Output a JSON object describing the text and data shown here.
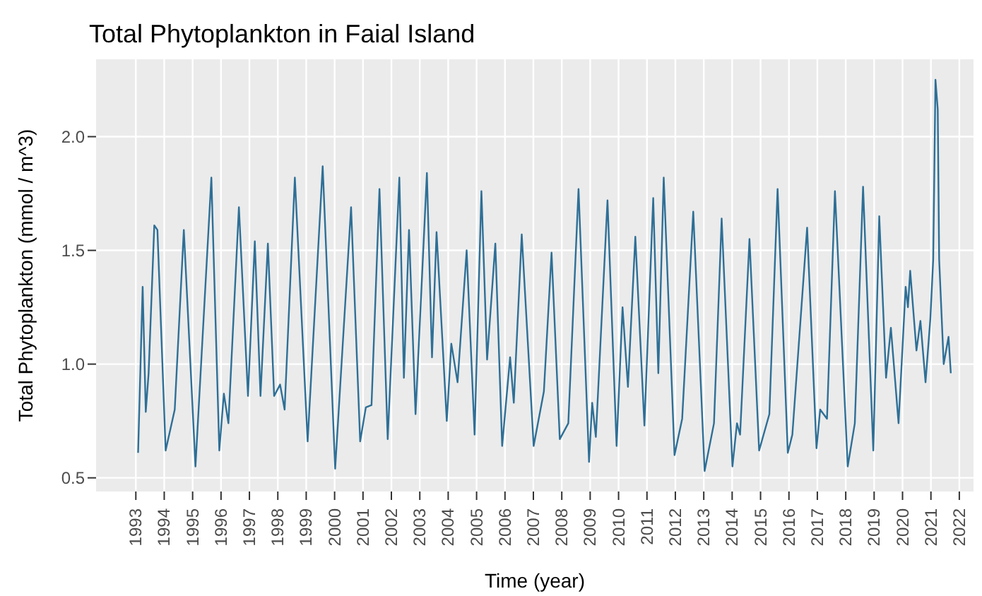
{
  "chart_data": {
    "type": "line",
    "title": "Total Phytoplankton in Faial Island",
    "xlabel": "Time (year)",
    "ylabel": "Total Phytoplankton (mmol / m^3)",
    "x": [
      1993.08,
      1993.24,
      1993.35,
      1993.45,
      1993.65,
      1993.76,
      1994.05,
      1994.37,
      1994.69,
      1995.1,
      1995.66,
      1995.94,
      1996.1,
      1996.26,
      1996.63,
      1996.95,
      1997.19,
      1997.39,
      1997.65,
      1997.87,
      1998.08,
      1998.24,
      1998.6,
      1999.05,
      1999.58,
      2000.02,
      2000.58,
      2000.9,
      2001.1,
      2001.3,
      2001.58,
      2001.87,
      2002.28,
      2002.44,
      2002.62,
      2002.85,
      2003.25,
      2003.43,
      2003.59,
      2003.95,
      2004.11,
      2004.33,
      2004.65,
      2004.93,
      2005.17,
      2005.37,
      2005.66,
      2005.9,
      2006.18,
      2006.31,
      2006.59,
      2007.01,
      2007.37,
      2007.64,
      2007.93,
      2008.23,
      2008.59,
      2008.96,
      2009.07,
      2009.2,
      2009.61,
      2009.93,
      2010.14,
      2010.33,
      2010.59,
      2010.91,
      2011.22,
      2011.4,
      2011.59,
      2011.97,
      2012.24,
      2012.63,
      2013.03,
      2013.36,
      2013.63,
      2014.01,
      2014.17,
      2014.28,
      2014.61,
      2014.95,
      2015.31,
      2015.6,
      2015.96,
      2016.12,
      2016.64,
      2016.97,
      2017.1,
      2017.34,
      2017.62,
      2018.07,
      2018.32,
      2018.61,
      2018.97,
      2019.18,
      2019.42,
      2019.59,
      2019.86,
      2020.11,
      2020.19,
      2020.27,
      2020.49,
      2020.63,
      2020.81,
      2020.98,
      2021.08,
      2021.16,
      2021.24,
      2021.29,
      2021.45,
      2021.62,
      2021.7
    ],
    "series": [
      {
        "color": "#2e6f96",
        "values": [
          0.61,
          1.34,
          0.79,
          0.96,
          1.61,
          1.59,
          0.62,
          0.8,
          1.59,
          0.55,
          1.82,
          0.62,
          0.87,
          0.74,
          1.69,
          0.86,
          1.54,
          0.86,
          1.53,
          0.86,
          0.91,
          0.8,
          1.82,
          0.66,
          1.87,
          0.54,
          1.69,
          0.66,
          0.81,
          0.82,
          1.77,
          0.67,
          1.82,
          0.94,
          1.59,
          0.78,
          1.84,
          1.03,
          1.58,
          0.75,
          1.09,
          0.92,
          1.5,
          0.69,
          1.76,
          1.02,
          1.53,
          0.64,
          1.03,
          0.83,
          1.57,
          0.64,
          0.88,
          1.49,
          0.67,
          0.74,
          1.77,
          0.57,
          0.83,
          0.68,
          1.72,
          0.64,
          1.25,
          0.9,
          1.56,
          0.73,
          1.73,
          0.96,
          1.82,
          0.6,
          0.76,
          1.67,
          0.53,
          0.74,
          1.64,
          0.55,
          0.74,
          0.69,
          1.55,
          0.62,
          0.78,
          1.77,
          0.61,
          0.69,
          1.6,
          0.63,
          0.8,
          0.76,
          1.76,
          0.55,
          0.74,
          1.78,
          0.62,
          1.65,
          0.94,
          1.16,
          0.74,
          1.34,
          1.25,
          1.41,
          1.06,
          1.19,
          0.92,
          1.2,
          1.46,
          2.25,
          2.12,
          1.46,
          1.0,
          1.12,
          0.96
        ]
      }
    ],
    "xlim": [
      1991.6,
      2022.5
    ],
    "xticks": [
      1993,
      1994,
      1995,
      1996,
      1997,
      1998,
      1999,
      2000,
      2001,
      2002,
      2003,
      2004,
      2005,
      2006,
      2007,
      2008,
      2009,
      2010,
      2011,
      2012,
      2013,
      2014,
      2015,
      2016,
      2017,
      2018,
      2019,
      2020,
      2021,
      2022
    ],
    "ylim": [
      0.44,
      2.34
    ],
    "yticks": [
      {
        "value": 0.5,
        "label": "0.5"
      },
      {
        "value": 1.0,
        "label": "1.0"
      },
      {
        "value": 1.5,
        "label": "1.5"
      },
      {
        "value": 2.0,
        "label": "2.0"
      }
    ],
    "grid": true
  }
}
